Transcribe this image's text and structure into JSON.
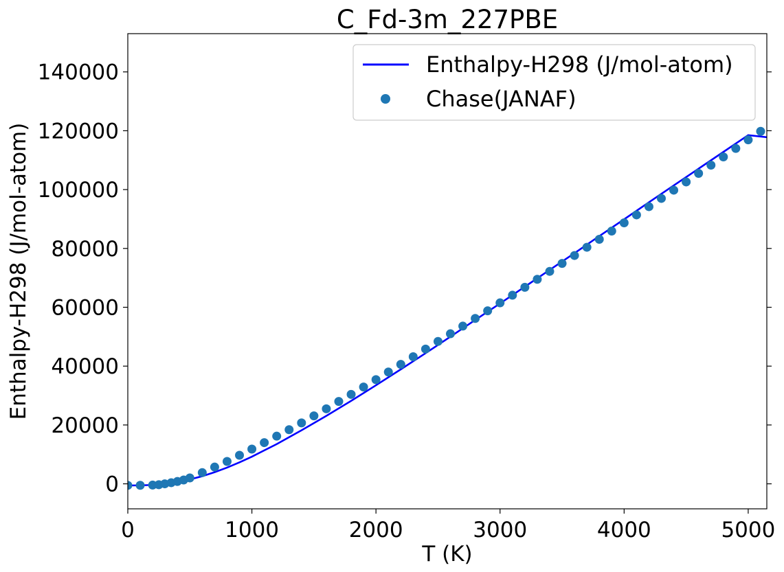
{
  "chart_data": {
    "type": "line",
    "title": "C_Fd-3m_227PBE",
    "xlabel": "T (K)",
    "ylabel": "Enthalpy-H298 (J/mol-atom)",
    "xlim": [
      0,
      5150
    ],
    "ylim": [
      -8500,
      153000
    ],
    "xticks": [
      0,
      1000,
      2000,
      3000,
      4000,
      5000
    ],
    "yticks": [
      0,
      20000,
      40000,
      60000,
      80000,
      100000,
      120000,
      140000
    ],
    "xtick_labels": [
      "0",
      "1000",
      "2000",
      "3000",
      "4000",
      "5000"
    ],
    "ytick_labels": [
      "0",
      "20000",
      "40000",
      "60000",
      "80000",
      "100000",
      "120000",
      "140000"
    ],
    "grid": false,
    "legend_position": "upper right",
    "colors": {
      "line": "#0000ff",
      "markers": "#1f77b4"
    },
    "series": [
      {
        "name": "Enthalpy-H298 (J/mol-atom)",
        "style": "line",
        "x": [
          0,
          100,
          200,
          298,
          400,
          500,
          600,
          700,
          800,
          900,
          1000,
          1200,
          1400,
          1600,
          1800,
          2000,
          2200,
          2400,
          2600,
          2800,
          3000,
          3200,
          3400,
          3600,
          3800,
          4000,
          4200,
          4400,
          4600,
          4800,
          5000,
          5150
        ],
        "y": [
          -550,
          -530,
          -390,
          0,
          610,
          1480,
          2600,
          3950,
          5520,
          7290,
          9230,
          13500,
          18200,
          23100,
          28200,
          33500,
          38900,
          44400,
          50000,
          55700,
          61300,
          67000,
          72700,
          78400,
          84200,
          89900,
          95700,
          101400,
          107100,
          112800,
          118500,
          117800
        ]
      },
      {
        "name": "Chase(JANAF)",
        "style": "markers",
        "x": [
          0,
          100,
          200,
          250,
          298.15,
          350,
          400,
          450,
          500,
          600,
          700,
          800,
          900,
          1000,
          1100,
          1200,
          1300,
          1400,
          1500,
          1600,
          1700,
          1800,
          1900,
          2000,
          2100,
          2200,
          2300,
          2400,
          2500,
          2600,
          2700,
          2800,
          2900,
          3000,
          3100,
          3200,
          3300,
          3400,
          3500,
          3600,
          3700,
          3800,
          3900,
          4000,
          4100,
          4200,
          4300,
          4400,
          4500,
          4600,
          4700,
          4800,
          4900,
          5000,
          5100
        ],
        "y": [
          -523,
          -500,
          -430,
          -300,
          0,
          380,
          800,
          1300,
          2000,
          3800,
          5700,
          7600,
          9700,
          11800,
          14000,
          16200,
          18400,
          20700,
          23100,
          25500,
          28000,
          30400,
          32900,
          35400,
          38000,
          40600,
          43200,
          45800,
          48400,
          51000,
          53600,
          56200,
          58800,
          61500,
          64100,
          66800,
          69500,
          72200,
          74900,
          77600,
          80400,
          83100,
          85900,
          88700,
          91400,
          94200,
          97000,
          99800,
          102600,
          105500,
          108300,
          111100,
          114000,
          116900,
          119800
        ]
      }
    ]
  }
}
